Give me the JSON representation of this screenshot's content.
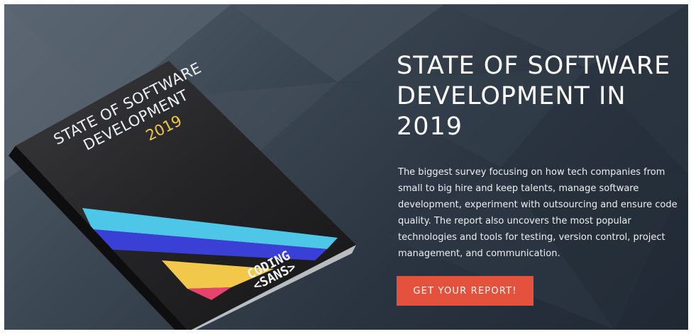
{
  "hero": {
    "title": "STATE OF SOFTWARE DEVELOPMENT IN 2019",
    "description": "The biggest survey focusing on how tech companies from small to big hire and keep talents, manage software development, experiment with outsourcing and ensure code quality. The report also uncovers the most popular technologies and tools for testing, version control, project management, and communication.",
    "cta_label": "GET YOUR REPORT!"
  },
  "book": {
    "title": "STATE OF SOFTWARE\nDEVELOPMENT",
    "year": "2019",
    "logo_line1": "CODING",
    "logo_line2": "<SANS>"
  },
  "colors": {
    "cta_background": "#e4513c",
    "book_year": "#f2c84b",
    "stripe_cyan": "#4ec6e8",
    "stripe_blue": "#3a3fd6",
    "stripe_yellow": "#f2c84b",
    "stripe_pink": "#e8436f"
  }
}
